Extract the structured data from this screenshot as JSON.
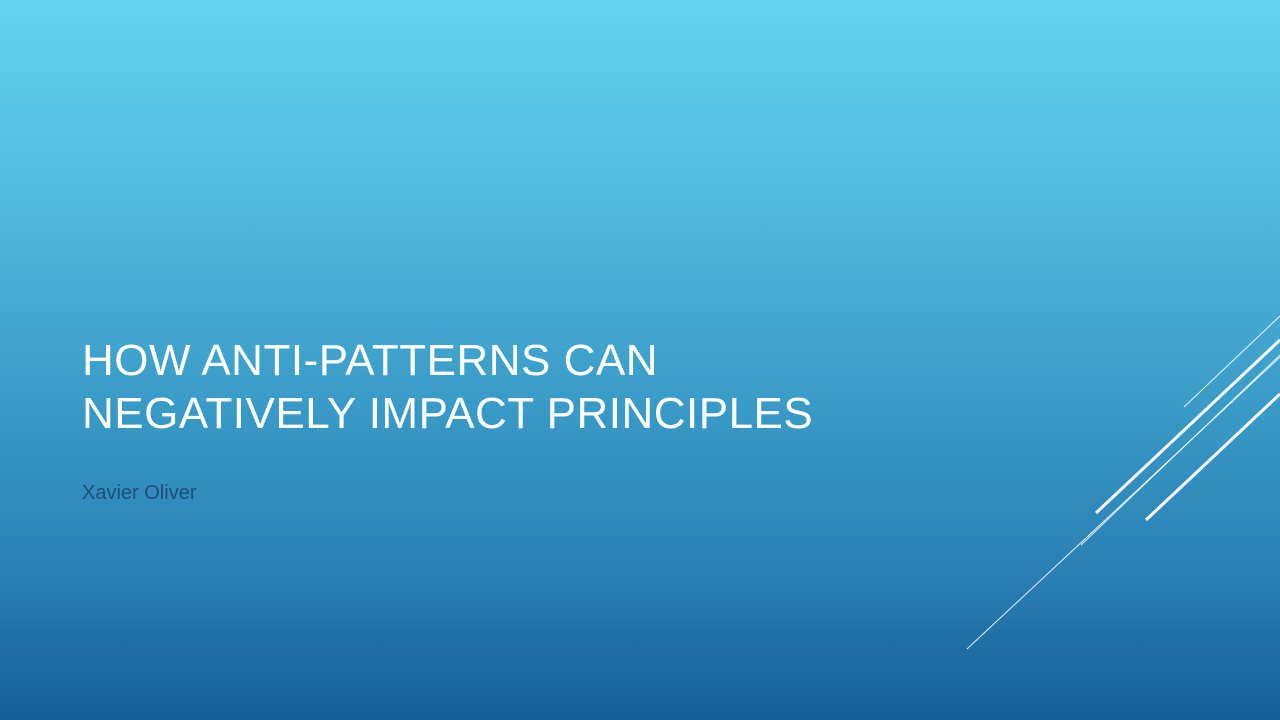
{
  "slide": {
    "title_lines": [
      "HOW ANTI-PATTERNS CAN",
      "NEGATIVELY IMPACT PRINCIPLES"
    ],
    "subtitle": "Xavier Oliver"
  },
  "colors": {
    "gradient_top": "#62d3f0",
    "gradient_bottom": "#155e98",
    "title_text": "#ffffff",
    "subtitle_text": "#1e4e7a",
    "decorative_lines": "#ffffff"
  }
}
